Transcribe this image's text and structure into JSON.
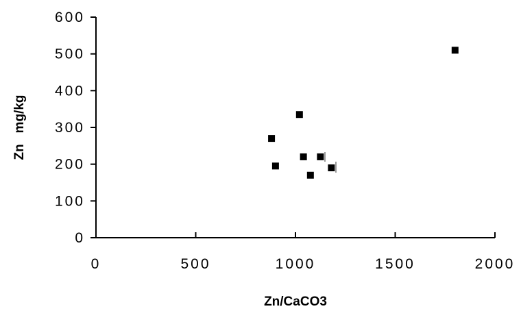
{
  "chart_data": {
    "type": "scatter",
    "title": "",
    "xlabel": "Zn/CaCO3",
    "ylabel": "Zn   mg/kg",
    "xlim": [
      0,
      2000
    ],
    "ylim": [
      0,
      600
    ],
    "x_ticks": [
      "0",
      "500",
      "1000",
      "1500",
      "2000"
    ],
    "y_ticks": [
      "0",
      "100",
      "200",
      "300",
      "400",
      "500",
      "600"
    ],
    "grid": false,
    "legend": "none",
    "series": [
      {
        "marker": "square",
        "color": "#000000",
        "points": [
          {
            "x": 880,
            "y": 270
          },
          {
            "x": 900,
            "y": 195
          },
          {
            "x": 1020,
            "y": 335
          },
          {
            "x": 1040,
            "y": 220
          },
          {
            "x": 1075,
            "y": 170
          },
          {
            "x": 1125,
            "y": 220
          },
          {
            "x": 1180,
            "y": 190
          },
          {
            "x": 1800,
            "y": 510
          }
        ]
      }
    ]
  }
}
